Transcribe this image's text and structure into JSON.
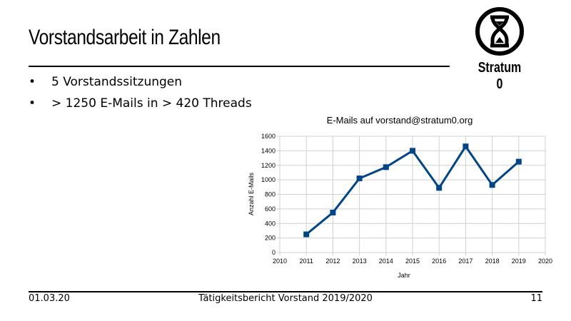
{
  "slide": {
    "title": "Vorstandsarbeit in Zahlen",
    "bullets": [
      "5 Vorstandssitzungen",
      "> 1250 E-Mails in > 420 Threads"
    ],
    "logo_text": "Stratum 0"
  },
  "footer": {
    "date": "01.03.20",
    "center": "Tätigkeitsbericht Vorstand 2019/2020",
    "page": "11"
  },
  "chart_data": {
    "type": "line",
    "title": "E-Mails auf vorstand@stratum0.org",
    "xlabel": "Jahr",
    "ylabel": "Anzahl E-Mails",
    "x": [
      2011,
      2012,
      2013,
      2014,
      2015,
      2016,
      2017,
      2018,
      2019
    ],
    "series": [
      {
        "values": [
          250,
          550,
          1020,
          1175,
          1400,
          890,
          1460,
          930,
          1250
        ],
        "color": "#004586"
      }
    ],
    "xlim": [
      2010,
      2020
    ],
    "ylim": [
      0,
      1600
    ],
    "xticks": [
      2010,
      2011,
      2012,
      2013,
      2014,
      2015,
      2016,
      2017,
      2018,
      2019,
      2020
    ],
    "yticks": [
      0,
      200,
      400,
      600,
      800,
      1000,
      1200,
      1400,
      1600
    ],
    "grid": true,
    "marker": "square"
  }
}
